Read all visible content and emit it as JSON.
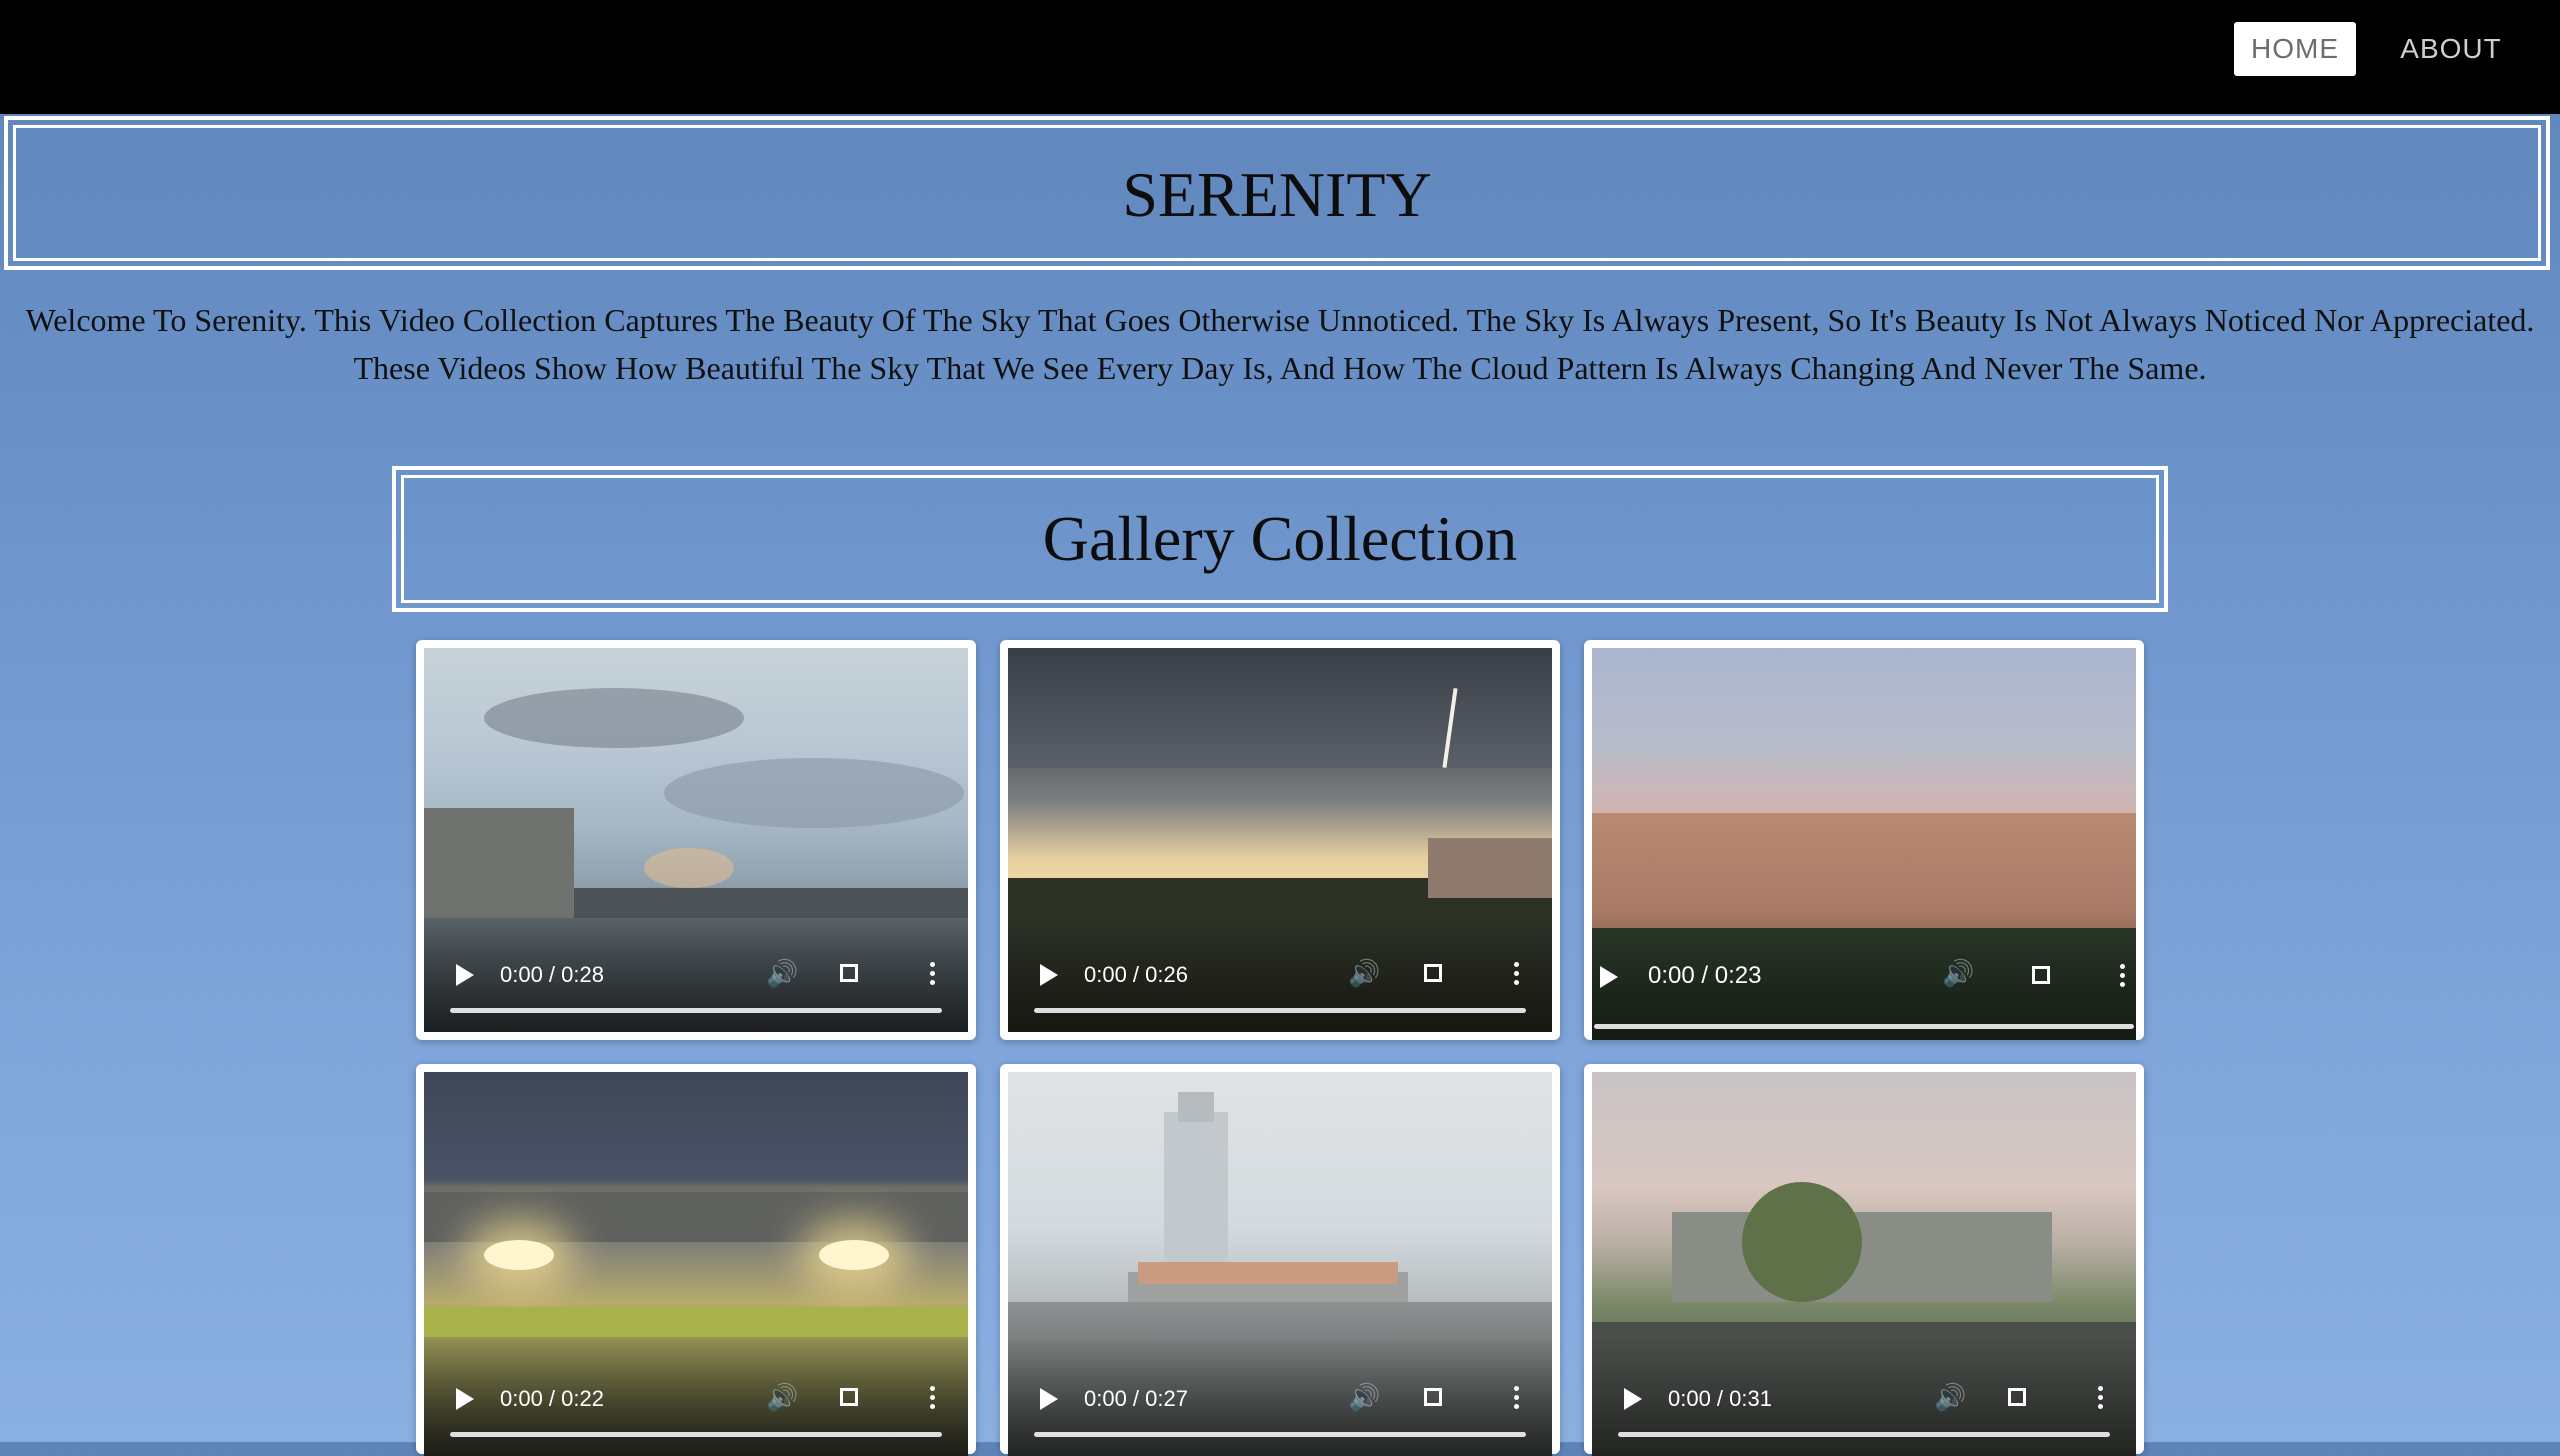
{
  "nav": {
    "home": "HOME",
    "about": "ABOUT"
  },
  "hero": {
    "title": "SERENITY"
  },
  "intro": {
    "line1": "Welcome To Serenity. This Video Collection Captures The Beauty Of The Sky That Goes Otherwise Unnoticed. The Sky Is Always Present, So It's Beauty Is Not Always Noticed Nor Appreciated.",
    "line2": "These Videos Show How Beautiful The Sky That We See Every Day Is, And How The Cloud Pattern Is Always Changing And Never The Same."
  },
  "gallery": {
    "title": "Gallery Collection",
    "videos": [
      {
        "time": "0:00 / 0:28"
      },
      {
        "time": "0:00 / 0:26"
      },
      {
        "time": "0:00 / 0:23"
      },
      {
        "time": "0:00 / 0:22"
      },
      {
        "time": "0:00 / 0:27"
      },
      {
        "time": "0:00 / 0:31"
      }
    ]
  },
  "icons": {
    "play": "play-icon",
    "mute": "volume-icon",
    "fullscreen": "fullscreen-icon",
    "more": "more-options-icon"
  },
  "colors": {
    "navbar": "#000000",
    "background": "#6a91c8",
    "card": "#ffffff"
  }
}
